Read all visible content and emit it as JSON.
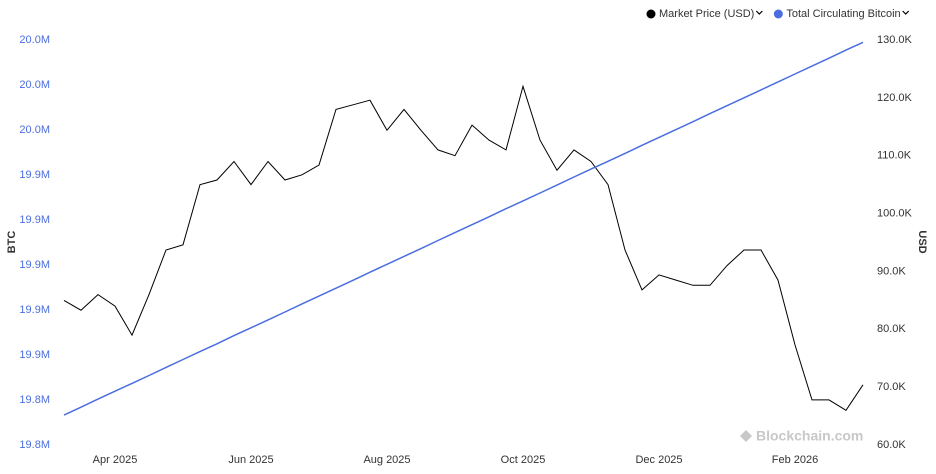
{
  "chart_data": {
    "type": "line",
    "categories": [
      null,
      null,
      null,
      "Apr 2025",
      null,
      null,
      null,
      null,
      null,
      null,
      null,
      "Jun 2025",
      null,
      null,
      null,
      null,
      null,
      null,
      null,
      "Aug 2025",
      null,
      null,
      null,
      null,
      null,
      null,
      null,
      "Oct 2025",
      null,
      null,
      null,
      null,
      null,
      null,
      null,
      "Dec 2025",
      null,
      null,
      null,
      null,
      null,
      null,
      null,
      "Feb 2026",
      null,
      null,
      null,
      null
    ],
    "series": [
      {
        "name": "Market Price (USD)",
        "color": "#000000",
        "axis": "y2",
        "values": [
          85000,
          83300,
          86000,
          84000,
          79000,
          86000,
          93700,
          94600,
          105000,
          105800,
          109000,
          105000,
          109000,
          105800,
          106700,
          108400,
          118000,
          118800,
          119600,
          114400,
          118000,
          114400,
          111000,
          110000,
          115300,
          112700,
          111000,
          122000,
          112700,
          107500,
          111000,
          109000,
          105000,
          93700,
          86800,
          89400,
          88500,
          87600,
          87600,
          91000,
          93700,
          93700,
          88500,
          77300,
          67800,
          67800,
          66000,
          70400
        ]
      },
      {
        "name": "Total Circulating Bitcoin",
        "color": "#4a6ee0",
        "axis": "y",
        "values": [
          19833300,
          19836800,
          19840400,
          19843900,
          19847400,
          19850900,
          19854500,
          19858000,
          19861500,
          19865000,
          19868600,
          19872100,
          19875600,
          19879100,
          19882700,
          19886200,
          19889700,
          19893200,
          19896800,
          19900300,
          19903800,
          19907300,
          19910900,
          19914400,
          19917900,
          19921400,
          19925000,
          19928500,
          19932000,
          19935500,
          19939100,
          19942600,
          19946100,
          19949600,
          19953200,
          19956700,
          19960200,
          19963700,
          19967300,
          19970800,
          19974300,
          19977800,
          19981400,
          19984900,
          19988400,
          19991900,
          19995500,
          19999000
        ]
      }
    ],
    "y_label": "BTC",
    "y2_label": "USD",
    "ylim": [
      19820000,
      20000000
    ],
    "yticks": [
      {
        "value": 19820000,
        "label": "19.8M"
      },
      {
        "value": 19840000,
        "label": "19.8M"
      },
      {
        "value": 19860000,
        "label": "19.9M"
      },
      {
        "value": 19880000,
        "label": "19.9M"
      },
      {
        "value": 19900000,
        "label": "19.9M"
      },
      {
        "value": 19920000,
        "label": "19.9M"
      },
      {
        "value": 19940000,
        "label": "19.9M"
      },
      {
        "value": 19960000,
        "label": "20.0M"
      },
      {
        "value": 19980000,
        "label": "20.0M"
      },
      {
        "value": 20000000,
        "label": "20.0M"
      }
    ],
    "y2lim": [
      60000,
      130000
    ],
    "y2ticks": [
      {
        "value": 60000,
        "label": "60.0K"
      },
      {
        "value": 70000,
        "label": "70.0K"
      },
      {
        "value": 80000,
        "label": "80.0K"
      },
      {
        "value": 90000,
        "label": "90.0K"
      },
      {
        "value": 100000,
        "label": "100.0K"
      },
      {
        "value": 110000,
        "label": "110.0K"
      },
      {
        "value": 120000,
        "label": "120.0K"
      },
      {
        "value": 130000,
        "label": "130.0K"
      }
    ],
    "y_color": "#4a6ee0",
    "watermark": "Blockchain.com"
  }
}
